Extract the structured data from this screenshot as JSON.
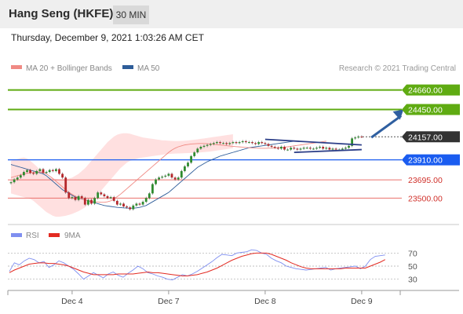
{
  "header": {
    "title": "Hang Seng (HKFE)",
    "timeframe": "30 MIN"
  },
  "subtitle": "Thursday, December 9, 2021 1:03:26 AM CET",
  "colors": {
    "resistance": "#5fab12",
    "pivot": "#1a5cf0",
    "support": "#e9716c",
    "current": "#333333",
    "ma50": "#2e5d99",
    "ma20": "#f08a84",
    "band_fill": "#ffd6d6",
    "rsi": "#7f8ff0",
    "rsi_ma": "#e32b22",
    "arrow": "#2f5fa0"
  },
  "chart_data": [
    {
      "type": "candlestick",
      "legend": [
        {
          "name": "MA 20 + Bollinger Bands",
          "color": "#f08a84"
        },
        {
          "name": "MA 50",
          "color": "#2e5d99"
        }
      ],
      "credit": "Research © 2021 Trading Central",
      "ylim": [
        23250,
        24850
      ],
      "x_ticks": [
        {
          "label": "Dec 4",
          "index": 19
        },
        {
          "label": "Dec 7",
          "index": 49
        },
        {
          "label": "Dec 8",
          "index": 79
        },
        {
          "label": "Dec 9",
          "index": 109
        }
      ],
      "levels": [
        {
          "value": 24660,
          "label": "24660.00",
          "kind": "resistance"
        },
        {
          "value": 24450,
          "label": "24450.00",
          "kind": "resistance"
        },
        {
          "value": 24157,
          "label": "24157.00",
          "kind": "current"
        },
        {
          "value": 23910,
          "label": "23910.00",
          "kind": "pivot"
        },
        {
          "value": 23695,
          "label": "23695.00",
          "kind": "support"
        },
        {
          "value": 23500,
          "label": "23500.00",
          "kind": "support"
        }
      ],
      "close": [
        23670,
        23700,
        23720,
        23745,
        23780,
        23800,
        23770,
        23760,
        23790,
        23810,
        23770,
        23780,
        23800,
        23790,
        23810,
        23760,
        23720,
        23560,
        23500,
        23510,
        23480,
        23520,
        23500,
        23430,
        23480,
        23440,
        23500,
        23560,
        23540,
        23520,
        23500,
        23510,
        23470,
        23430,
        23440,
        23410,
        23400,
        23380,
        23420,
        23440,
        23430,
        23460,
        23500,
        23550,
        23650,
        23700,
        23720,
        23730,
        23740,
        23760,
        23720,
        23700,
        23720,
        23790,
        23840,
        23880,
        23950,
        23990,
        24030,
        24050,
        24060,
        24070,
        24080,
        24090,
        24100,
        24090,
        24090,
        24080,
        24090,
        24100,
        24090,
        24100,
        24110,
        24100,
        24100,
        24090,
        24080,
        24100,
        24090,
        24080,
        24060,
        24050,
        24040,
        24030,
        24050,
        24020,
        24020,
        24040,
        24030,
        24020,
        24030,
        24040,
        24040,
        24030,
        24030,
        24040,
        24050,
        24030,
        24040,
        24020,
        24030,
        24020,
        24020,
        24030,
        24040,
        24060,
        24140,
        24150,
        24160,
        24157
      ],
      "ma20": [
        23720,
        23730,
        23740,
        23750,
        23760,
        23765,
        23770,
        23775,
        23778,
        23780,
        23775,
        23760,
        23735,
        23710,
        23680,
        23650,
        23620,
        23590,
        23560,
        23540,
        23520,
        23505,
        23490,
        23480,
        23470,
        23465,
        23460,
        23458,
        23455,
        23455,
        23460,
        23470,
        23490,
        23515,
        23540,
        23570,
        23600,
        23630,
        23660,
        23690,
        23720,
        23750,
        23780,
        23810,
        23840,
        23870,
        23900,
        23930,
        23960,
        23990,
        24015,
        24035,
        24050,
        24060,
        24070,
        24075,
        24080,
        24082,
        24084,
        24085,
        24085,
        24083,
        24080,
        24077,
        24073,
        24070,
        24066,
        24062,
        24058,
        24055,
        24052,
        24049,
        24046,
        24043,
        24040,
        24038,
        24036,
        24035,
        24034,
        24034,
        24035,
        24036,
        24038,
        24040,
        24043,
        24046,
        24050,
        24055,
        24060,
        24065,
        24070,
        24075,
        24080,
        24085,
        24090,
        24095,
        24100,
        24105,
        24110
      ],
      "band_upper": [
        23900,
        23910,
        23920,
        23930,
        23935,
        23925,
        23900,
        23870,
        23840,
        23800,
        23770,
        23740,
        23720,
        23710,
        23705,
        23700,
        23700,
        23705,
        23710,
        23720,
        23740,
        23760,
        23790,
        23820,
        23860,
        23900,
        23940,
        23980,
        24020,
        24060,
        24100,
        24130,
        24160,
        24180,
        24190,
        24195,
        24195,
        24190,
        24180,
        24170,
        24160,
        24150,
        24145,
        24140,
        24135,
        24130,
        24125,
        24120,
        24118,
        24115,
        24113,
        24112,
        24112,
        24113,
        24115,
        24118,
        24122,
        24126,
        24130,
        24135,
        24140,
        24145,
        24150,
        24155,
        24160,
        24165,
        24170,
        24175,
        24180,
        24185
      ],
      "band_lower": [
        23550,
        23540,
        23530,
        23520,
        23510,
        23500,
        23490,
        23470,
        23440,
        23410,
        23380,
        23350,
        23330,
        23310,
        23300,
        23300,
        23305,
        23310,
        23320,
        23330,
        23345,
        23360,
        23380,
        23400,
        23430,
        23460,
        23500,
        23540,
        23580,
        23620,
        23660,
        23700,
        23740,
        23780,
        23820,
        23850,
        23880,
        23900,
        23910,
        23920,
        23930,
        23935,
        23940,
        23945,
        23950,
        23955,
        23960,
        23965,
        23970,
        23972,
        23975,
        23977,
        23978,
        23980,
        23982,
        23983,
        23984,
        23985,
        23987,
        23990,
        23993,
        23996,
        24000,
        24005,
        24010,
        24015,
        24020,
        24025,
        24030,
        24035,
        24040,
        24045,
        24050,
        24055,
        24060,
        24065,
        24070,
        24075,
        24080,
        24085
      ],
      "ma50": [
        23860,
        23850,
        23840,
        23830,
        23820,
        23810,
        23800,
        23790,
        23780,
        23770,
        23760,
        23740,
        23710,
        23680,
        23650,
        23620,
        23590,
        23570,
        23550,
        23530,
        23510,
        23500,
        23490,
        23480,
        23470,
        23460,
        23450,
        23440,
        23430,
        23420,
        23415,
        23410,
        23405,
        23400,
        23398,
        23395,
        23393,
        23392,
        23392,
        23395,
        23400,
        23410,
        23420,
        23440,
        23460,
        23480,
        23500,
        23520,
        23540,
        23560,
        23590,
        23620,
        23650,
        23680,
        23710,
        23740,
        23770,
        23800,
        23830,
        23850,
        23870,
        23890,
        23905,
        23920,
        23935,
        23950,
        23960,
        23970,
        23980,
        23990,
        24000,
        24010,
        24020,
        24030,
        24040,
        24045,
        24050,
        24055,
        24060,
        24065,
        24070,
        24075,
        24080,
        24085,
        24090,
        24095,
        24100,
        24105,
        24110
      ],
      "patterns": [
        {
          "from": [
            79,
            24130
          ],
          "to": [
            109,
            24070
          ]
        },
        {
          "from": [
            88,
            23990
          ],
          "to": [
            109,
            24020
          ]
        },
        {
          "arrow_from": [
            112,
            24150
          ],
          "arrow_to": [
            122,
            24450
          ]
        }
      ]
    },
    {
      "type": "line",
      "legend": [
        {
          "name": "RSI",
          "color": "#7f8ff0"
        },
        {
          "name": "9MA",
          "color": "#e32b22"
        }
      ],
      "ylim": [
        20,
        80
      ],
      "y_ticks": [
        70,
        50,
        30
      ],
      "series": [
        {
          "name": "RSI",
          "values": [
            42,
            55,
            52,
            58,
            62,
            60,
            55,
            57,
            48,
            52,
            58,
            55,
            50,
            45,
            38,
            30,
            35,
            40,
            36,
            32,
            38,
            41,
            36,
            33,
            39,
            44,
            50,
            46,
            40,
            38,
            35,
            33,
            30,
            29,
            33,
            37,
            35,
            38,
            42,
            47,
            52,
            57,
            63,
            68,
            67,
            66,
            70,
            71,
            72,
            75,
            74,
            70,
            68,
            62,
            58,
            55,
            50,
            48,
            46,
            45,
            44,
            45,
            46,
            47,
            48,
            44,
            46,
            47,
            48,
            49,
            50,
            46,
            50,
            60,
            65,
            66,
            67
          ]
        },
        {
          "name": "9MA",
          "values": [
            40,
            44,
            47,
            50,
            53,
            54,
            55,
            55,
            54,
            54,
            53,
            52,
            50,
            47,
            44,
            41,
            39,
            37,
            37,
            37,
            37,
            37,
            38,
            38,
            38,
            38,
            39,
            40,
            41,
            40,
            40,
            39,
            38,
            37,
            36,
            35,
            35,
            36,
            37,
            39,
            41,
            44,
            47,
            51,
            55,
            59,
            62,
            65,
            67,
            69,
            70,
            70,
            70,
            68,
            65,
            62,
            59,
            55,
            52,
            49,
            47,
            46,
            46,
            46,
            46,
            46,
            46,
            46,
            47,
            47,
            47,
            47,
            47,
            50,
            53,
            56,
            60
          ]
        }
      ]
    }
  ]
}
